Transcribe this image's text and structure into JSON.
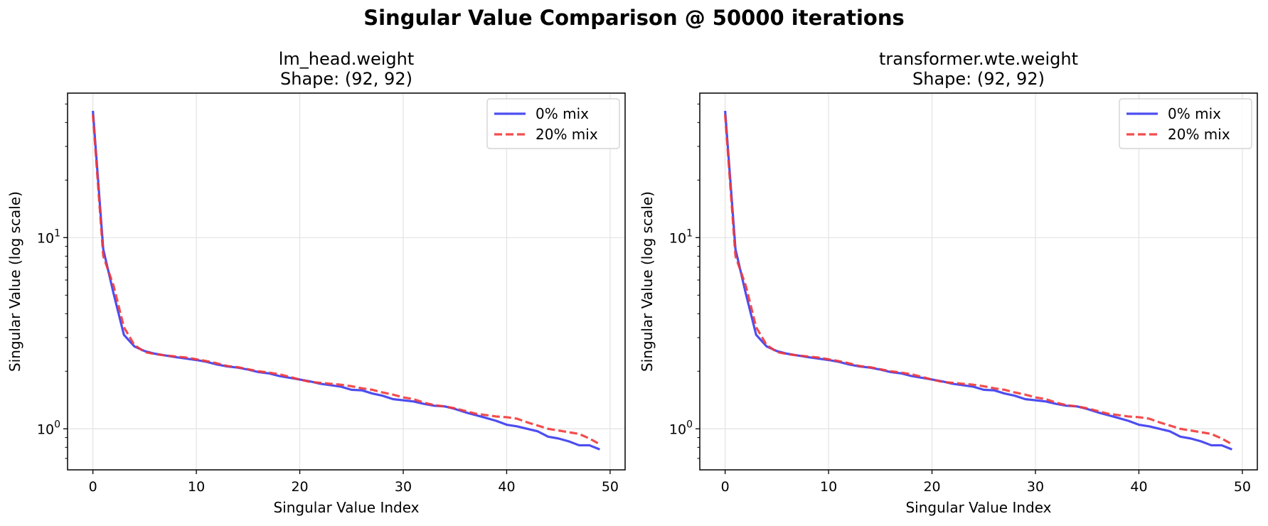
{
  "figure": {
    "title": "Singular Value Comparison @ 50000 iterations"
  },
  "chart_data": [
    {
      "type": "line",
      "title": "lm_head.weight",
      "subtitle": "Shape: (92, 92)",
      "xlabel": "Singular Value Index",
      "ylabel": "Singular Value (log scale)",
      "xlim": [
        -2.45,
        51.45
      ],
      "ylim": [
        0.61,
        57
      ],
      "yscale": "log",
      "xticks": [
        0,
        10,
        20,
        30,
        40,
        50
      ],
      "yticks": [
        {
          "value": 1,
          "base": "10",
          "exp": "0"
        },
        {
          "value": 10,
          "base": "10",
          "exp": "1"
        }
      ],
      "grid": true,
      "legend_position": "upper right",
      "x": [
        0,
        1,
        2,
        3,
        4,
        5,
        6,
        7,
        8,
        9,
        10,
        11,
        12,
        13,
        14,
        15,
        16,
        17,
        18,
        19,
        20,
        21,
        22,
        23,
        24,
        25,
        26,
        27,
        28,
        29,
        30,
        31,
        32,
        33,
        34,
        35,
        36,
        37,
        38,
        39,
        40,
        41,
        42,
        43,
        44,
        45,
        46,
        47,
        48,
        49
      ],
      "series": [
        {
          "name": "0% mix",
          "color": "#3a3af0",
          "style": "solid",
          "values": [
            46,
            8.7,
            5.1,
            3.1,
            2.7,
            2.55,
            2.47,
            2.42,
            2.37,
            2.33,
            2.29,
            2.24,
            2.17,
            2.12,
            2.09,
            2.04,
            1.98,
            1.95,
            1.89,
            1.85,
            1.81,
            1.77,
            1.72,
            1.69,
            1.66,
            1.6,
            1.59,
            1.53,
            1.49,
            1.43,
            1.41,
            1.39,
            1.35,
            1.32,
            1.31,
            1.27,
            1.22,
            1.18,
            1.14,
            1.1,
            1.05,
            1.03,
            1.0,
            0.97,
            0.91,
            0.89,
            0.86,
            0.82,
            0.82,
            0.78
          ]
        },
        {
          "name": "20% mix",
          "color": "#f23a3a",
          "style": "dashed",
          "values": [
            44,
            8.0,
            5.6,
            3.4,
            2.75,
            2.52,
            2.46,
            2.42,
            2.39,
            2.36,
            2.31,
            2.26,
            2.2,
            2.13,
            2.1,
            2.05,
            2.0,
            1.97,
            1.93,
            1.87,
            1.81,
            1.76,
            1.74,
            1.72,
            1.7,
            1.67,
            1.63,
            1.6,
            1.55,
            1.51,
            1.46,
            1.43,
            1.37,
            1.33,
            1.31,
            1.28,
            1.24,
            1.2,
            1.18,
            1.16,
            1.15,
            1.13,
            1.08,
            1.04,
            1.0,
            0.98,
            0.96,
            0.94,
            0.89,
            0.83
          ]
        }
      ]
    },
    {
      "type": "line",
      "title": "transformer.wte.weight",
      "subtitle": "Shape: (92, 92)",
      "xlabel": "Singular Value Index",
      "ylabel": "Singular Value (log scale)",
      "xlim": [
        -2.45,
        51.45
      ],
      "ylim": [
        0.61,
        57
      ],
      "yscale": "log",
      "xticks": [
        0,
        10,
        20,
        30,
        40,
        50
      ],
      "yticks": [
        {
          "value": 1,
          "base": "10",
          "exp": "0"
        },
        {
          "value": 10,
          "base": "10",
          "exp": "1"
        }
      ],
      "grid": true,
      "legend_position": "upper right",
      "x": [
        0,
        1,
        2,
        3,
        4,
        5,
        6,
        7,
        8,
        9,
        10,
        11,
        12,
        13,
        14,
        15,
        16,
        17,
        18,
        19,
        20,
        21,
        22,
        23,
        24,
        25,
        26,
        27,
        28,
        29,
        30,
        31,
        32,
        33,
        34,
        35,
        36,
        37,
        38,
        39,
        40,
        41,
        42,
        43,
        44,
        45,
        46,
        47,
        48,
        49
      ],
      "series": [
        {
          "name": "0% mix",
          "color": "#3a3af0",
          "style": "solid",
          "values": [
            46,
            8.7,
            5.1,
            3.1,
            2.7,
            2.55,
            2.47,
            2.42,
            2.37,
            2.33,
            2.29,
            2.24,
            2.17,
            2.12,
            2.09,
            2.04,
            1.98,
            1.95,
            1.89,
            1.85,
            1.81,
            1.77,
            1.72,
            1.69,
            1.66,
            1.6,
            1.59,
            1.53,
            1.49,
            1.43,
            1.41,
            1.39,
            1.35,
            1.32,
            1.31,
            1.27,
            1.22,
            1.18,
            1.14,
            1.1,
            1.05,
            1.03,
            1.0,
            0.97,
            0.91,
            0.89,
            0.86,
            0.82,
            0.82,
            0.78
          ]
        },
        {
          "name": "20% mix",
          "color": "#f23a3a",
          "style": "dashed",
          "values": [
            44,
            8.0,
            5.6,
            3.4,
            2.75,
            2.52,
            2.46,
            2.42,
            2.39,
            2.36,
            2.31,
            2.26,
            2.2,
            2.13,
            2.1,
            2.05,
            2.0,
            1.97,
            1.93,
            1.87,
            1.81,
            1.76,
            1.74,
            1.72,
            1.7,
            1.67,
            1.63,
            1.6,
            1.55,
            1.51,
            1.46,
            1.43,
            1.37,
            1.33,
            1.31,
            1.28,
            1.24,
            1.2,
            1.18,
            1.16,
            1.15,
            1.13,
            1.08,
            1.04,
            1.0,
            0.98,
            0.96,
            0.94,
            0.89,
            0.83
          ]
        }
      ]
    }
  ]
}
